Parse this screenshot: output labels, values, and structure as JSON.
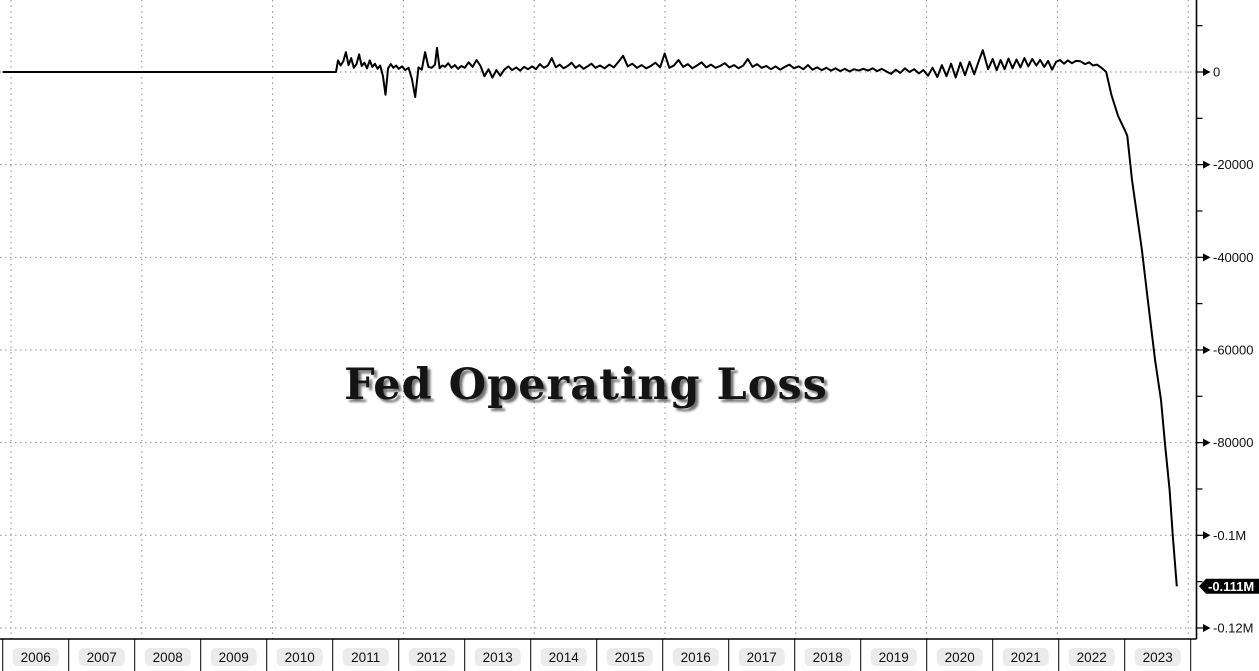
{
  "chart_data": {
    "type": "line",
    "title": "Fed Operating Loss",
    "x_ticks": [
      "2006",
      "2007",
      "2008",
      "2009",
      "2010",
      "2011",
      "2012",
      "2013",
      "2014",
      "2015",
      "2016",
      "2017",
      "2018",
      "2019",
      "2020",
      "2021",
      "2022",
      "2023"
    ],
    "x_gridline_years": [
      2006,
      2008,
      2010,
      2012,
      2014,
      2016,
      2018,
      2020,
      2022,
      2024
    ],
    "xlim": [
      2006,
      2024.1
    ],
    "ylim": [
      -122000,
      15500
    ],
    "grid": "dotted",
    "legend": "none",
    "y_ticks": [
      {
        "value": 0,
        "label": "0"
      },
      {
        "value": -20000,
        "label": "-20000"
      },
      {
        "value": -40000,
        "label": "-40000"
      },
      {
        "value": -60000,
        "label": "-60000"
      },
      {
        "value": -80000,
        "label": "-80000"
      },
      {
        "value": -100000,
        "label": "-0.1M"
      },
      {
        "value": -120000,
        "label": "-0.12M"
      }
    ],
    "y_minor_ticks": [
      10000,
      -10000,
      -30000,
      -50000,
      -70000,
      -90000,
      -110000
    ],
    "last_value": {
      "label": "-0.111M",
      "value": -111000
    },
    "series": [
      {
        "name": "Fed Operating Loss",
        "color": "#000000",
        "points": [
          [
            2006.0,
            0
          ],
          [
            2011.05,
            0
          ],
          [
            2011.08,
            2500
          ],
          [
            2011.12,
            1400
          ],
          [
            2011.16,
            2300
          ],
          [
            2011.2,
            4300
          ],
          [
            2011.24,
            1500
          ],
          [
            2011.28,
            3000
          ],
          [
            2011.32,
            900
          ],
          [
            2011.36,
            1700
          ],
          [
            2011.4,
            3800
          ],
          [
            2011.44,
            1300
          ],
          [
            2011.48,
            2000
          ],
          [
            2011.52,
            800
          ],
          [
            2011.56,
            2500
          ],
          [
            2011.6,
            1100
          ],
          [
            2011.64,
            1800
          ],
          [
            2011.68,
            700
          ],
          [
            2011.72,
            1400
          ],
          [
            2011.76,
            -800
          ],
          [
            2011.8,
            -4900
          ],
          [
            2011.84,
            800
          ],
          [
            2011.88,
            1700
          ],
          [
            2011.92,
            900
          ],
          [
            2011.96,
            1400
          ],
          [
            2012.0,
            700
          ],
          [
            2012.05,
            1200
          ],
          [
            2012.1,
            400
          ],
          [
            2012.15,
            900
          ],
          [
            2012.2,
            -1500
          ],
          [
            2012.25,
            -5400
          ],
          [
            2012.3,
            1000
          ],
          [
            2012.35,
            500
          ],
          [
            2012.4,
            4300
          ],
          [
            2012.45,
            1100
          ],
          [
            2012.5,
            900
          ],
          [
            2012.55,
            1600
          ],
          [
            2012.58,
            5200
          ],
          [
            2012.62,
            800
          ],
          [
            2012.66,
            1400
          ],
          [
            2012.7,
            1100
          ],
          [
            2012.75,
            1900
          ],
          [
            2012.8,
            900
          ],
          [
            2012.85,
            1500
          ],
          [
            2012.9,
            700
          ],
          [
            2012.95,
            1300
          ],
          [
            2013.0,
            900
          ],
          [
            2013.06,
            2100
          ],
          [
            2013.12,
            1100
          ],
          [
            2013.18,
            2600
          ],
          [
            2013.24,
            1300
          ],
          [
            2013.3,
            -900
          ],
          [
            2013.36,
            600
          ],
          [
            2013.42,
            -1200
          ],
          [
            2013.48,
            400
          ],
          [
            2013.54,
            -800
          ],
          [
            2013.6,
            500
          ],
          [
            2013.66,
            1200
          ],
          [
            2013.72,
            400
          ],
          [
            2013.78,
            1000
          ],
          [
            2013.84,
            300
          ],
          [
            2013.9,
            1100
          ],
          [
            2013.96,
            600
          ],
          [
            2014.02,
            1200
          ],
          [
            2014.08,
            600
          ],
          [
            2014.14,
            1700
          ],
          [
            2014.2,
            900
          ],
          [
            2014.26,
            1400
          ],
          [
            2014.32,
            3000
          ],
          [
            2014.38,
            1000
          ],
          [
            2014.44,
            1600
          ],
          [
            2014.5,
            800
          ],
          [
            2014.56,
            1300
          ],
          [
            2014.62,
            2000
          ],
          [
            2014.68,
            900
          ],
          [
            2014.74,
            1500
          ],
          [
            2014.8,
            700
          ],
          [
            2014.86,
            1200
          ],
          [
            2014.92,
            1800
          ],
          [
            2014.98,
            900
          ],
          [
            2015.05,
            1400
          ],
          [
            2015.12,
            800
          ],
          [
            2015.19,
            1600
          ],
          [
            2015.26,
            1000
          ],
          [
            2015.33,
            2200
          ],
          [
            2015.4,
            3500
          ],
          [
            2015.47,
            1200
          ],
          [
            2015.54,
            1800
          ],
          [
            2015.61,
            900
          ],
          [
            2015.68,
            1500
          ],
          [
            2015.75,
            800
          ],
          [
            2015.82,
            1300
          ],
          [
            2015.89,
            2000
          ],
          [
            2015.96,
            1000
          ],
          [
            2016.03,
            4000
          ],
          [
            2016.1,
            900
          ],
          [
            2016.17,
            1400
          ],
          [
            2016.24,
            2600
          ],
          [
            2016.31,
            1100
          ],
          [
            2016.38,
            1700
          ],
          [
            2016.45,
            800
          ],
          [
            2016.52,
            1400
          ],
          [
            2016.59,
            2100
          ],
          [
            2016.66,
            1000
          ],
          [
            2016.73,
            1600
          ],
          [
            2016.8,
            900
          ],
          [
            2016.87,
            1300
          ],
          [
            2016.94,
            1900
          ],
          [
            2017.01,
            1000
          ],
          [
            2017.08,
            1500
          ],
          [
            2017.15,
            800
          ],
          [
            2017.22,
            1400
          ],
          [
            2017.29,
            2800
          ],
          [
            2017.36,
            1100
          ],
          [
            2017.43,
            1700
          ],
          [
            2017.5,
            900
          ],
          [
            2017.57,
            1300
          ],
          [
            2017.64,
            600
          ],
          [
            2017.71,
            1200
          ],
          [
            2017.78,
            500
          ],
          [
            2017.85,
            1100
          ],
          [
            2017.92,
            1600
          ],
          [
            2017.99,
            800
          ],
          [
            2018.06,
            1200
          ],
          [
            2018.13,
            600
          ],
          [
            2018.2,
            1500
          ],
          [
            2018.27,
            500
          ],
          [
            2018.34,
            1000
          ],
          [
            2018.41,
            400
          ],
          [
            2018.48,
            900
          ],
          [
            2018.55,
            300
          ],
          [
            2018.62,
            800
          ],
          [
            2018.69,
            200
          ],
          [
            2018.76,
            700
          ],
          [
            2018.83,
            100
          ],
          [
            2018.9,
            600
          ],
          [
            2018.97,
            300
          ],
          [
            2019.04,
            700
          ],
          [
            2019.11,
            300
          ],
          [
            2019.18,
            800
          ],
          [
            2019.25,
            200
          ],
          [
            2019.32,
            700
          ],
          [
            2019.39,
            100
          ],
          [
            2019.46,
            -400
          ],
          [
            2019.53,
            500
          ],
          [
            2019.6,
            -200
          ],
          [
            2019.67,
            800
          ],
          [
            2019.74,
            0
          ],
          [
            2019.81,
            600
          ],
          [
            2019.88,
            -300
          ],
          [
            2019.95,
            400
          ],
          [
            2020.02,
            -800
          ],
          [
            2020.09,
            900
          ],
          [
            2020.16,
            -1100
          ],
          [
            2020.23,
            1500
          ],
          [
            2020.3,
            -900
          ],
          [
            2020.37,
            1800
          ],
          [
            2020.44,
            -1200
          ],
          [
            2020.51,
            2000
          ],
          [
            2020.58,
            -700
          ],
          [
            2020.65,
            2200
          ],
          [
            2020.72,
            -500
          ],
          [
            2020.79,
            2400
          ],
          [
            2020.85,
            4700
          ],
          [
            2020.93,
            600
          ],
          [
            2021.0,
            2800
          ],
          [
            2021.06,
            400
          ],
          [
            2021.12,
            2600
          ],
          [
            2021.18,
            600
          ],
          [
            2021.24,
            2900
          ],
          [
            2021.3,
            800
          ],
          [
            2021.36,
            2700
          ],
          [
            2021.42,
            1000
          ],
          [
            2021.48,
            3000
          ],
          [
            2021.54,
            1200
          ],
          [
            2021.6,
            2800
          ],
          [
            2021.66,
            1400
          ],
          [
            2021.72,
            2600
          ],
          [
            2021.78,
            1100
          ],
          [
            2021.84,
            2400
          ],
          [
            2021.9,
            500
          ],
          [
            2021.96,
            2200
          ],
          [
            2022.02,
            2600
          ],
          [
            2022.08,
            1800
          ],
          [
            2022.14,
            2500
          ],
          [
            2022.2,
            1900
          ],
          [
            2022.26,
            2400
          ],
          [
            2022.33,
            2300
          ],
          [
            2022.4,
            1700
          ],
          [
            2022.46,
            2100
          ],
          [
            2022.52,
            1400
          ],
          [
            2022.58,
            1600
          ],
          [
            2022.64,
            1000
          ],
          [
            2022.69,
            400
          ],
          [
            2022.72,
            0
          ],
          [
            2022.8,
            -5000
          ],
          [
            2022.9,
            -9500
          ],
          [
            2023.0,
            -12500
          ],
          [
            2023.04,
            -13800
          ],
          [
            2023.11,
            -23300
          ],
          [
            2023.26,
            -38400
          ],
          [
            2023.35,
            -49200
          ],
          [
            2023.46,
            -62200
          ],
          [
            2023.55,
            -70800
          ],
          [
            2023.61,
            -80300
          ],
          [
            2023.68,
            -90200
          ],
          [
            2023.73,
            -100400
          ],
          [
            2023.79,
            -111000
          ]
        ]
      }
    ]
  },
  "colors": {
    "line": "#000000",
    "grid": "#8f8f8f",
    "axis": "#000000",
    "badge_bg": "#000000",
    "badge_text": "#ffffff",
    "year_pill": "#ebebeb",
    "title": "#141414"
  }
}
